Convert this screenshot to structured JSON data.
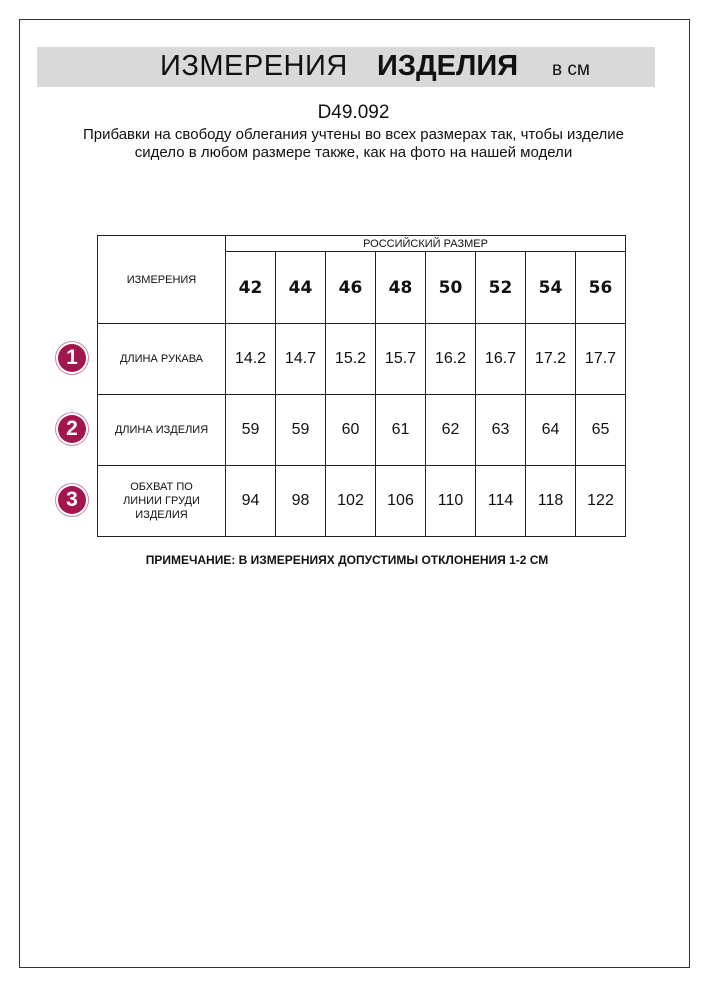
{
  "header": {
    "title_regular": "ИЗМЕРЕНИЯ",
    "title_bold": "ИЗДЕЛИЯ",
    "unit": "в см"
  },
  "product_code": "D49.092",
  "description": "Прибавки на свободу облегания учтены во всех размерах так, чтобы изделие сидело в любом размере также, как на фото на нашей модели",
  "table": {
    "measure_header": "ИЗМЕРЕНИЯ",
    "size_group_header": "РОССИЙСКИЙ РАЗМЕР",
    "sizes": [
      "42",
      "44",
      "46",
      "48",
      "50",
      "52",
      "54",
      "56"
    ],
    "rows": [
      {
        "badge": "1",
        "label": "ДЛИНА РУКАВА",
        "values": [
          "14.2",
          "14.7",
          "15.2",
          "15.7",
          "16.2",
          "16.7",
          "17.2",
          "17.7"
        ]
      },
      {
        "badge": "2",
        "label": "ДЛИНА ИЗДЕЛИЯ",
        "values": [
          "59",
          "59",
          "60",
          "61",
          "62",
          "63",
          "64",
          "65"
        ]
      },
      {
        "badge": "3",
        "label": "ОБХВАТ ПО ЛИНИИ ГРУДИ ИЗДЕЛИЯ",
        "values": [
          "94",
          "98",
          "102",
          "106",
          "110",
          "114",
          "118",
          "122"
        ]
      }
    ]
  },
  "note": "ПРИМЕЧАНИЕ: В ИЗМЕРЕНИЯХ ДОПУСТИМЫ ОТКЛОНЕНИЯ 1-2 СМ",
  "colors": {
    "badge": "#a3154f",
    "banner": "#d9d9d9"
  }
}
